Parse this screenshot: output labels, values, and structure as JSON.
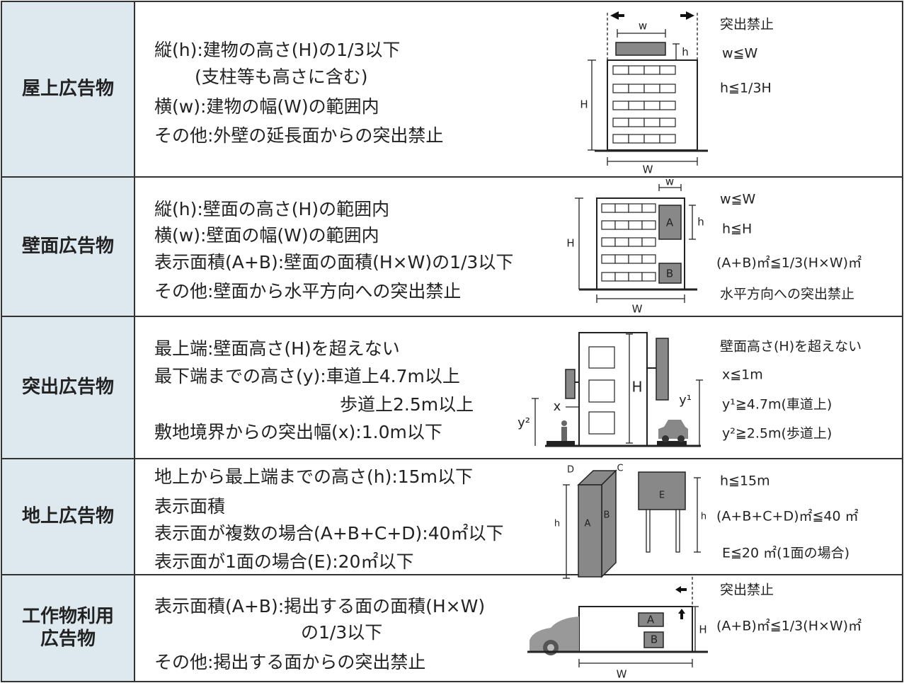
{
  "rows": [
    {
      "header": [
        "屋上広告物"
      ],
      "lines": [
        "縦(h):建物の高さ(H)の1/3以下",
        "(支柱等も高さに含む)",
        "横(w):建物の幅(W)の範囲内",
        "その他:外壁の延長面からの突出禁止"
      ],
      "diagram_labels": [
        "w",
        "h",
        "H",
        "W"
      ],
      "notes": [
        "突出禁止",
        "w≦W",
        "h≦1/3H"
      ]
    },
    {
      "header": [
        "壁面広告物"
      ],
      "lines": [
        "縦(h):壁面の高さ(H)の範囲内",
        "横(w):壁面の幅(W)の範囲内",
        "表示面積(A+B):壁面の面積(H×W)の1/3以下",
        "その他:壁面から水平方向への突出禁止"
      ],
      "diagram_labels": [
        "w",
        "h",
        "H",
        "W",
        "A",
        "B"
      ],
      "notes": [
        "w≦W",
        "h≦H",
        "(A+B)㎡≦1/3(H×W)㎡",
        "水平方向への突出禁止"
      ]
    },
    {
      "header": [
        "突出広告物"
      ],
      "lines": [
        "最上端:壁面高さ(H)を超えない",
        "最下端までの高さ(y):車道上4.7m以上",
        "歩道上2.5m以上",
        "敷地境界からの突出幅(x):1.0m以下"
      ],
      "diagram_labels": [
        "H",
        "x",
        "y¹",
        "y²"
      ],
      "notes": [
        "壁面高さ(H)を超えない",
        "x≦1m",
        "y¹≧4.7m(車道上)",
        "y²≧2.5m(歩道上)"
      ]
    },
    {
      "header": [
        "地上広告物"
      ],
      "lines": [
        "地上から最上端までの高さ(h):15m以下",
        "表示面積",
        "表示面が複数の場合(A+B+C+D):40㎡以下",
        "表示面が1面の場合(E):20㎡以下"
      ],
      "diagram_labels": [
        "D",
        "C",
        "h",
        "A",
        "B",
        "E",
        "h"
      ],
      "notes": [
        "h≦15m",
        "(A+B+C+D)㎡≦40 ㎡",
        "E≦20 ㎡(1面の場合)"
      ]
    },
    {
      "header": [
        "工作物利用",
        "広告物"
      ],
      "lines": [
        "表示面積(A+B):掲出する面の面積(H×W)",
        "の1/3以下",
        "その他:掲出する面からの突出禁止"
      ],
      "diagram_labels": [
        "A",
        "B",
        "H",
        "W"
      ],
      "notes": [
        "突出禁止",
        "(A+B)㎡≦1/3(H×W)㎡"
      ]
    }
  ]
}
